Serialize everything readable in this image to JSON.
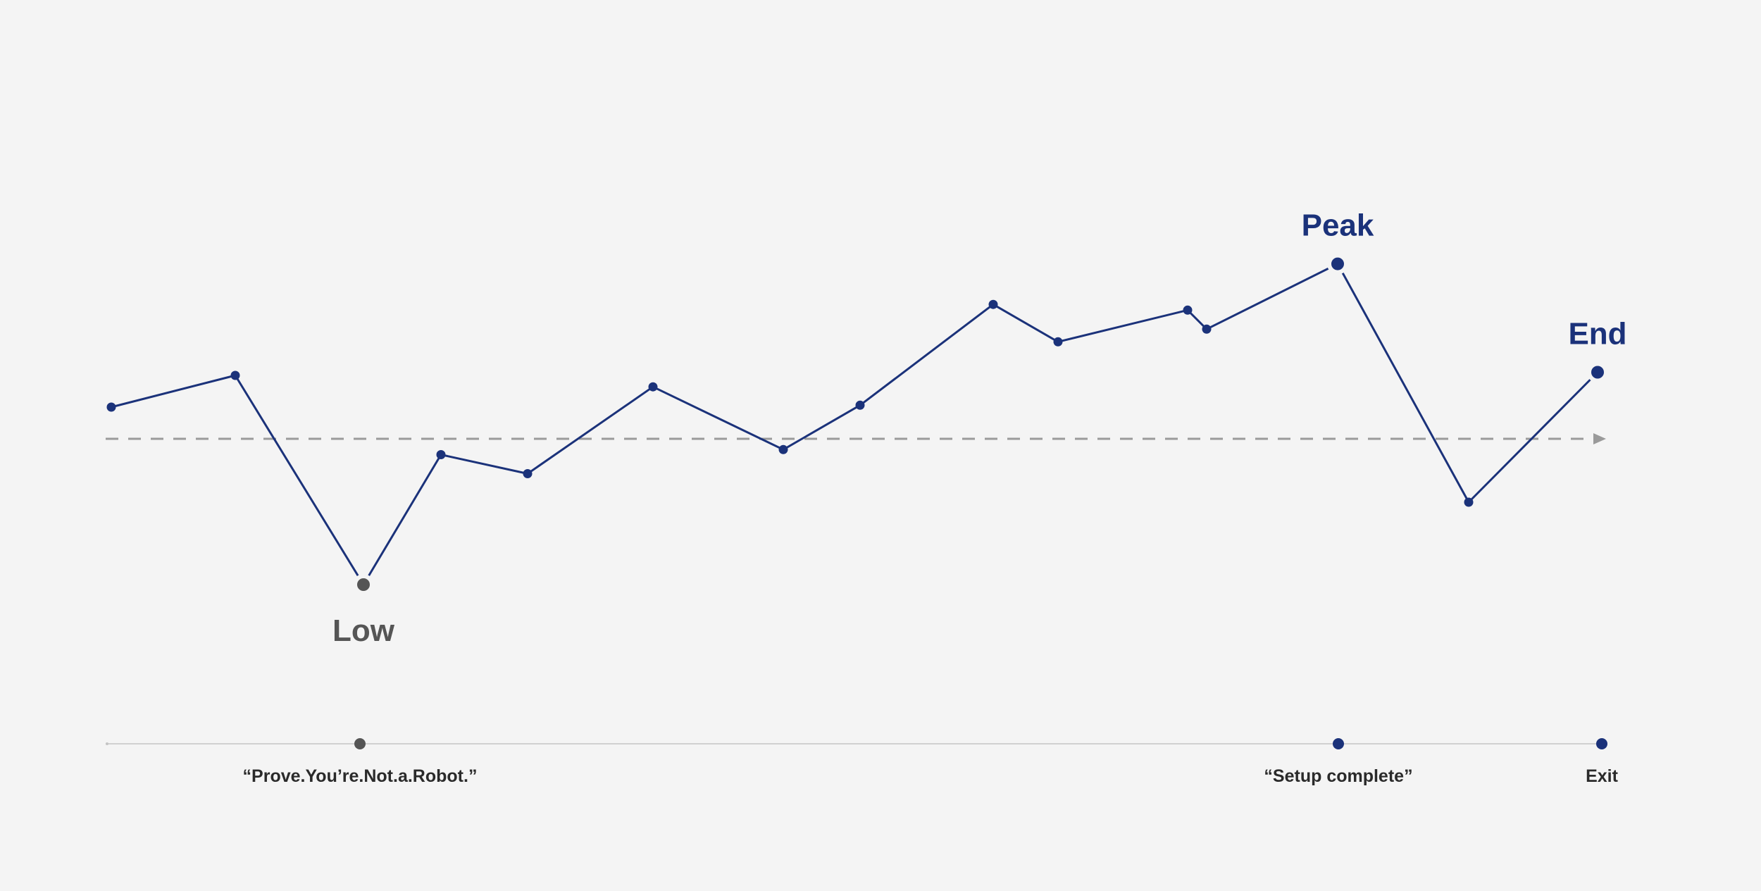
{
  "chart_data": {
    "type": "line",
    "x": [
      1,
      2,
      3,
      4,
      5,
      6,
      7,
      8,
      9,
      10,
      11,
      12,
      13,
      14,
      15,
      16
    ],
    "series": [
      {
        "values": [
          0.5,
          1.0,
          -2.3,
          -0.25,
          -0.55,
          0.82,
          -0.17,
          0.53,
          2.12,
          1.53,
          2.03,
          1.73,
          2.76,
          -1.0,
          1.05,
          null
        ]
      }
    ],
    "baseline": 0,
    "ylim": [
      -3.2,
      3.2
    ],
    "grid": false,
    "legend": "none",
    "callouts": [
      {
        "label": "Low",
        "x": 3,
        "style": "low"
      },
      {
        "label": "Peak",
        "x": 13,
        "style": "peak"
      },
      {
        "label": "End",
        "x": 15,
        "style": "peak"
      }
    ],
    "events": [
      {
        "label": "“Prove.You’re.Not.a.Robot.”",
        "x": 3,
        "style": "low"
      },
      {
        "label": "“Setup complete”",
        "x": 13,
        "style": "peak"
      },
      {
        "label": "Exit",
        "x": 15,
        "style": "peak"
      }
    ],
    "colors": {
      "line": "#1b327a",
      "point": "#1b327a",
      "low": "#555555",
      "baseline": "#9a9a9a",
      "timeline": "#c4c4c4",
      "label": "#2a2a2a",
      "background": "#f4f4f4"
    }
  }
}
